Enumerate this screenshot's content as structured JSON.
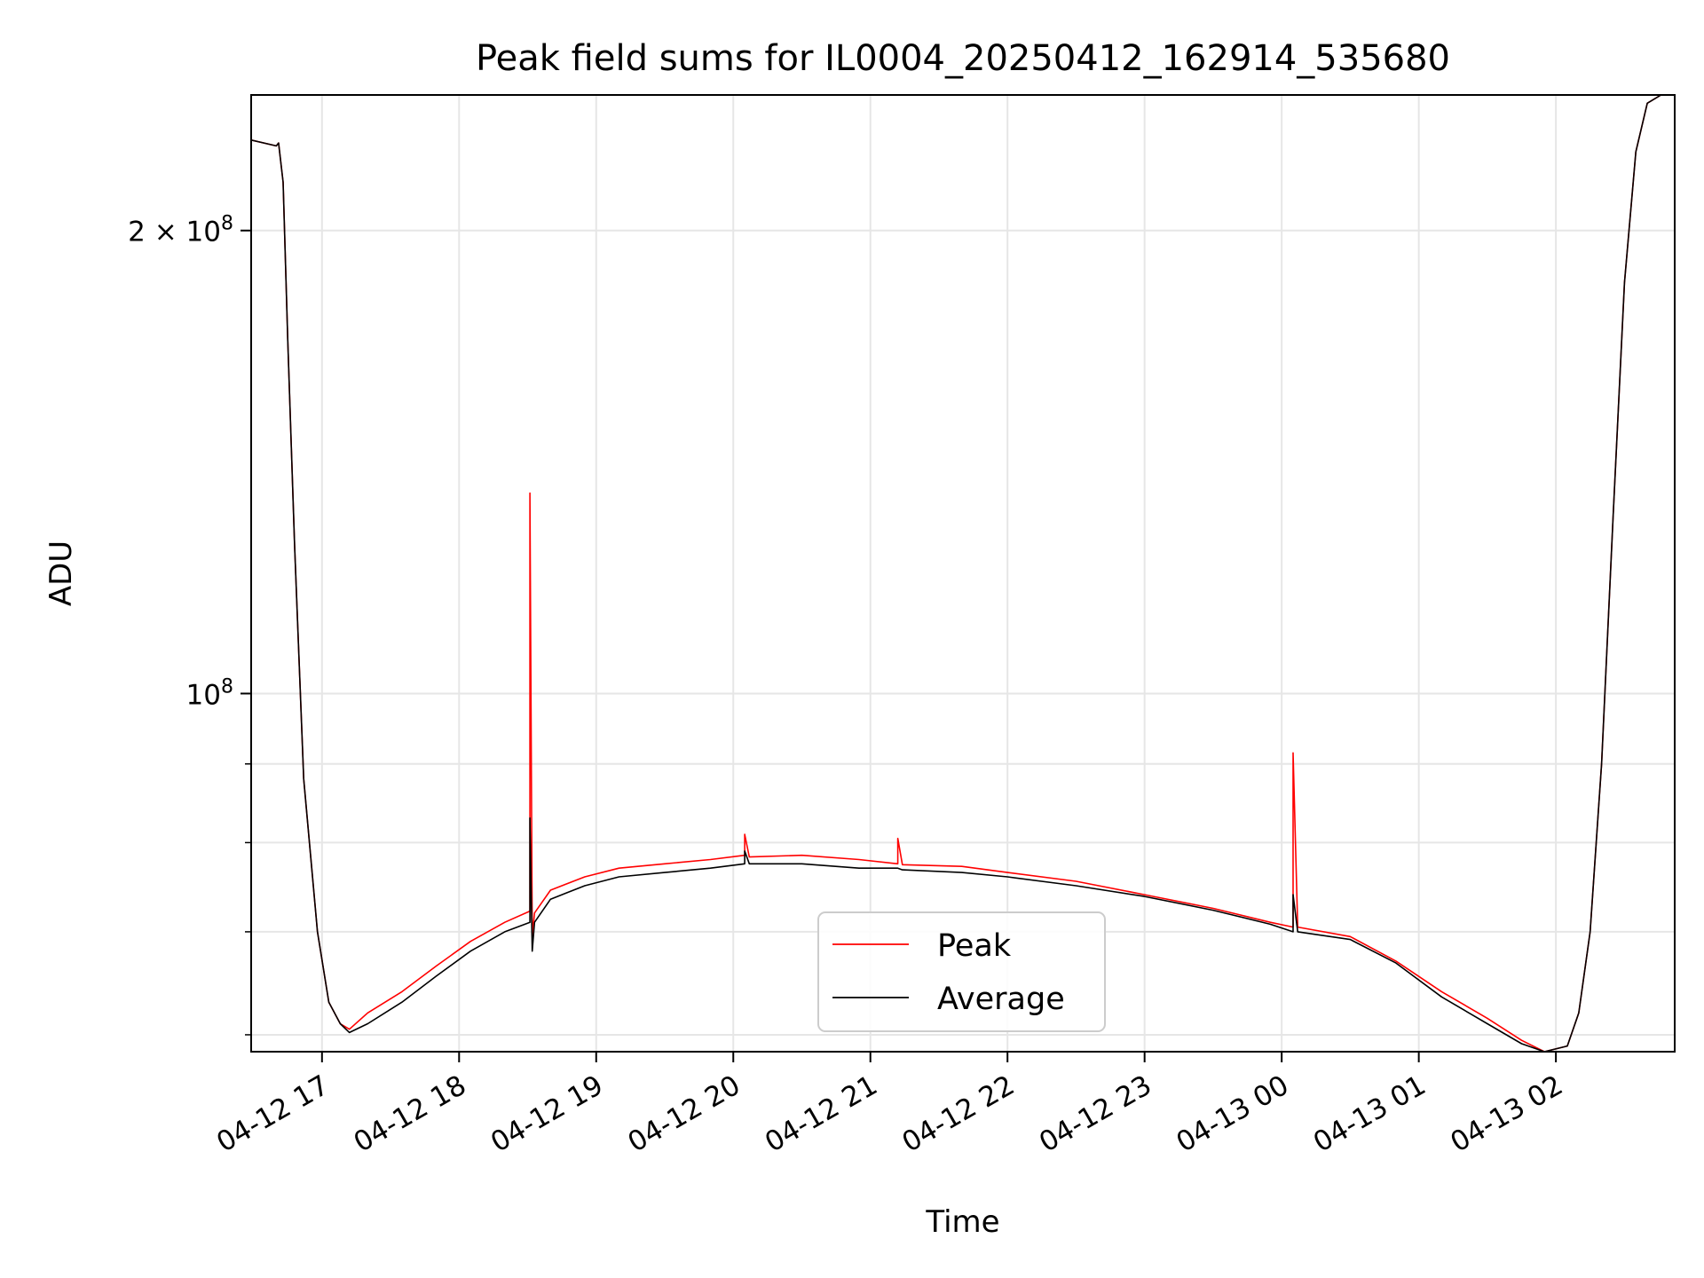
{
  "chart_data": {
    "type": "line",
    "title": "Peak field sums for IL0004_20250412_162914_535680",
    "xlabel": "Time",
    "ylabel": "ADU",
    "x_scale": "time",
    "y_scale": "log",
    "xlim": [
      "2025-04-12 16:29",
      "2025-04-13 02:52"
    ],
    "ylim": [
      58500000,
      245000000
    ],
    "x_ticks": [
      {
        "value": "2025-04-12 17:00",
        "label": "04-12 17"
      },
      {
        "value": "2025-04-12 18:00",
        "label": "04-12 18"
      },
      {
        "value": "2025-04-12 19:00",
        "label": "04-12 19"
      },
      {
        "value": "2025-04-12 20:00",
        "label": "04-12 20"
      },
      {
        "value": "2025-04-12 21:00",
        "label": "04-12 21"
      },
      {
        "value": "2025-04-12 22:00",
        "label": "04-12 22"
      },
      {
        "value": "2025-04-12 23:00",
        "label": "04-12 23"
      },
      {
        "value": "2025-04-13 00:00",
        "label": "04-13 00"
      },
      {
        "value": "2025-04-13 01:00",
        "label": "04-13 01"
      },
      {
        "value": "2025-04-13 02:00",
        "label": "04-13 02"
      }
    ],
    "y_major_ticks": [
      {
        "value": 100000000,
        "base": "10",
        "exp": "8",
        "coef": ""
      },
      {
        "value": 200000000,
        "base": "10",
        "exp": "8",
        "coef": "2 × "
      }
    ],
    "y_minor_ticks": [
      60000000,
      70000000,
      80000000,
      90000000
    ],
    "grid": true,
    "legend_position": "bottom-center",
    "series": [
      {
        "name": "Peak",
        "color": "#ff0000",
        "x": [
          "2025-04-12 16:29",
          "2025-04-12 16:40",
          "2025-04-12 16:41",
          "2025-04-12 16:43",
          "2025-04-12 16:45",
          "2025-04-12 16:48",
          "2025-04-12 16:52",
          "2025-04-12 16:58",
          "2025-04-12 17:03",
          "2025-04-12 17:08",
          "2025-04-12 17:12",
          "2025-04-12 17:20",
          "2025-04-12 17:35",
          "2025-04-12 17:50",
          "2025-04-12 18:05",
          "2025-04-12 18:20",
          "2025-04-12 18:31",
          "2025-04-12 18:31",
          "2025-04-12 18:32",
          "2025-04-12 18:33",
          "2025-04-12 18:40",
          "2025-04-12 18:55",
          "2025-04-12 19:10",
          "2025-04-12 19:30",
          "2025-04-12 19:50",
          "2025-04-12 20:05",
          "2025-04-12 20:05",
          "2025-04-12 20:07",
          "2025-04-12 20:30",
          "2025-04-12 20:55",
          "2025-04-12 21:12",
          "2025-04-12 21:12",
          "2025-04-12 21:14",
          "2025-04-12 21:40",
          "2025-04-12 22:00",
          "2025-04-12 22:30",
          "2025-04-12 23:00",
          "2025-04-12 23:30",
          "2025-04-12 23:55",
          "2025-04-13 00:05",
          "2025-04-13 00:05",
          "2025-04-13 00:07",
          "2025-04-13 00:30",
          "2025-04-13 00:50",
          "2025-04-13 01:10",
          "2025-04-13 01:30",
          "2025-04-13 01:45",
          "2025-04-13 01:55",
          "2025-04-13 02:05",
          "2025-04-13 02:10",
          "2025-04-13 02:15",
          "2025-04-13 02:20",
          "2025-04-13 02:25",
          "2025-04-13 02:30",
          "2025-04-13 02:35",
          "2025-04-13 02:40",
          "2025-04-13 02:46",
          "2025-04-13 02:52"
        ],
        "y": [
          229000000,
          227000000,
          228000000,
          215000000,
          170000000,
          125000000,
          88000000,
          70000000,
          63000000,
          61000000,
          60500000,
          62000000,
          64000000,
          66500000,
          69000000,
          71000000,
          72200000,
          135000000,
          69500000,
          72000000,
          74500000,
          76000000,
          77000000,
          77500000,
          78000000,
          78500000,
          81000000,
          78300000,
          78500000,
          78000000,
          77500000,
          80500000,
          77400000,
          77200000,
          76500000,
          75500000,
          74000000,
          72500000,
          71000000,
          70500000,
          91500000,
          70500000,
          69500000,
          67000000,
          64000000,
          61500000,
          59500000,
          58500000,
          59000000,
          62000000,
          70000000,
          90000000,
          130000000,
          185000000,
          225000000,
          242000000,
          245000000,
          245000000
        ]
      },
      {
        "name": "Average",
        "color": "#000000",
        "x": [
          "2025-04-12 16:29",
          "2025-04-12 16:40",
          "2025-04-12 16:41",
          "2025-04-12 16:43",
          "2025-04-12 16:45",
          "2025-04-12 16:48",
          "2025-04-12 16:52",
          "2025-04-12 16:58",
          "2025-04-12 17:03",
          "2025-04-12 17:08",
          "2025-04-12 17:12",
          "2025-04-12 17:20",
          "2025-04-12 17:35",
          "2025-04-12 17:50",
          "2025-04-12 18:05",
          "2025-04-12 18:20",
          "2025-04-12 18:31",
          "2025-04-12 18:31",
          "2025-04-12 18:32",
          "2025-04-12 18:33",
          "2025-04-12 18:40",
          "2025-04-12 18:55",
          "2025-04-12 19:10",
          "2025-04-12 19:30",
          "2025-04-12 19:50",
          "2025-04-12 20:05",
          "2025-04-12 20:05",
          "2025-04-12 20:07",
          "2025-04-12 20:30",
          "2025-04-12 20:55",
          "2025-04-12 21:12",
          "2025-04-12 21:14",
          "2025-04-12 21:40",
          "2025-04-12 22:00",
          "2025-04-12 22:30",
          "2025-04-12 23:00",
          "2025-04-12 23:30",
          "2025-04-12 23:55",
          "2025-04-13 00:05",
          "2025-04-13 00:05",
          "2025-04-13 00:07",
          "2025-04-13 00:30",
          "2025-04-13 00:50",
          "2025-04-13 01:10",
          "2025-04-13 01:30",
          "2025-04-13 01:45",
          "2025-04-13 01:55",
          "2025-04-13 02:05",
          "2025-04-13 02:10",
          "2025-04-13 02:15",
          "2025-04-13 02:20",
          "2025-04-13 02:25",
          "2025-04-13 02:30",
          "2025-04-13 02:35",
          "2025-04-13 02:40",
          "2025-04-13 02:46",
          "2025-04-13 02:52"
        ],
        "y": [
          229000000,
          227000000,
          228000000,
          215000000,
          170000000,
          125000000,
          88000000,
          70000000,
          63000000,
          61000000,
          60200000,
          61000000,
          63000000,
          65500000,
          68000000,
          70000000,
          71000000,
          83000000,
          68000000,
          71000000,
          73500000,
          75000000,
          76000000,
          76500000,
          77000000,
          77500000,
          79000000,
          77500000,
          77500000,
          77000000,
          77000000,
          76800000,
          76500000,
          76000000,
          75000000,
          73800000,
          72300000,
          70800000,
          70000000,
          74000000,
          70000000,
          69200000,
          66800000,
          63500000,
          61000000,
          59200000,
          58500000,
          59000000,
          62000000,
          70000000,
          90000000,
          130000000,
          185000000,
          225000000,
          242000000,
          245000000,
          245000000
        ]
      }
    ]
  }
}
